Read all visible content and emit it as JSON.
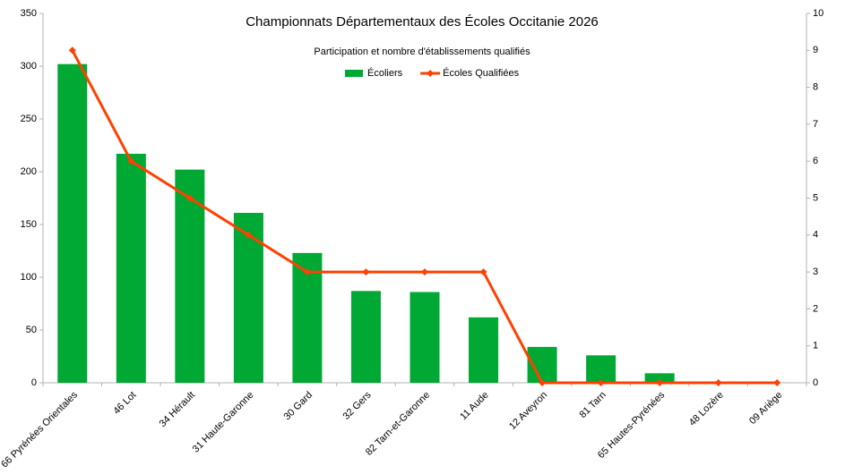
{
  "chart_data": {
    "type": "bar",
    "title": "Championnats Départementaux des Écoles Occitanie 2026",
    "subtitle": "Participation et nombre d'établissements qualifiés",
    "categories": [
      "66 Pyrénées Orientales",
      "46 Lot",
      "34 Hérault",
      "31 Haute-Garonne",
      "30 Gard",
      "32 Gers",
      "82 Tarn-et-Garonne",
      "11 Aude",
      "12 Aveyron",
      "81 Tarn",
      "65 Hautes-Pyrénées",
      "48 Lozère",
      "09 Ariège"
    ],
    "series": [
      {
        "name": "Écoliers",
        "type": "bar",
        "color": "#00a933",
        "values": [
          302,
          217,
          202,
          161,
          123,
          87,
          86,
          62,
          34,
          26,
          9,
          0,
          0
        ]
      },
      {
        "name": "Écoles Qualifiées",
        "type": "line",
        "axis": "y2",
        "color": "#ff4000",
        "values": [
          9,
          6,
          5,
          4,
          3,
          3,
          3,
          3,
          0,
          0,
          0,
          0,
          0
        ]
      }
    ],
    "ylim": [
      0,
      350
    ],
    "yticks": [
      0,
      50,
      100,
      150,
      200,
      250,
      300,
      350
    ],
    "y2lim": [
      0,
      10
    ],
    "y2ticks": [
      0,
      1,
      2,
      3,
      4,
      5,
      6,
      7,
      8,
      9,
      10
    ],
    "grid": false,
    "legend": "top"
  }
}
